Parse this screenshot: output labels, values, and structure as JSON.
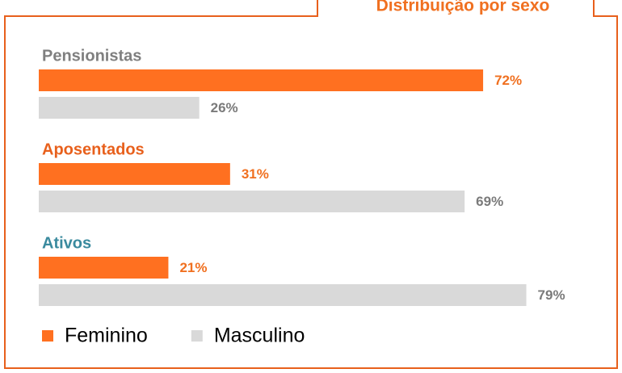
{
  "chart_data": {
    "type": "bar",
    "orientation": "horizontal",
    "title": "Distribuição por sexo",
    "categories": [
      "Pensionistas",
      "Aposentados",
      "Ativos"
    ],
    "category_colors": [
      "#7f7f7f",
      "#e8601c",
      "#3a8a9e"
    ],
    "series": [
      {
        "name": "Feminino",
        "color": "#ff7020",
        "label_color": "#f07020",
        "values": [
          72,
          31,
          21
        ],
        "value_labels": [
          "72%",
          "31%",
          "21%"
        ]
      },
      {
        "name": "Masculino",
        "color": "#d9d9d9",
        "label_color": "#7a7a7a",
        "values": [
          26,
          69,
          79
        ],
        "value_labels": [
          "26%",
          "69%",
          "79%"
        ]
      }
    ],
    "legend": "bottom-left"
  }
}
